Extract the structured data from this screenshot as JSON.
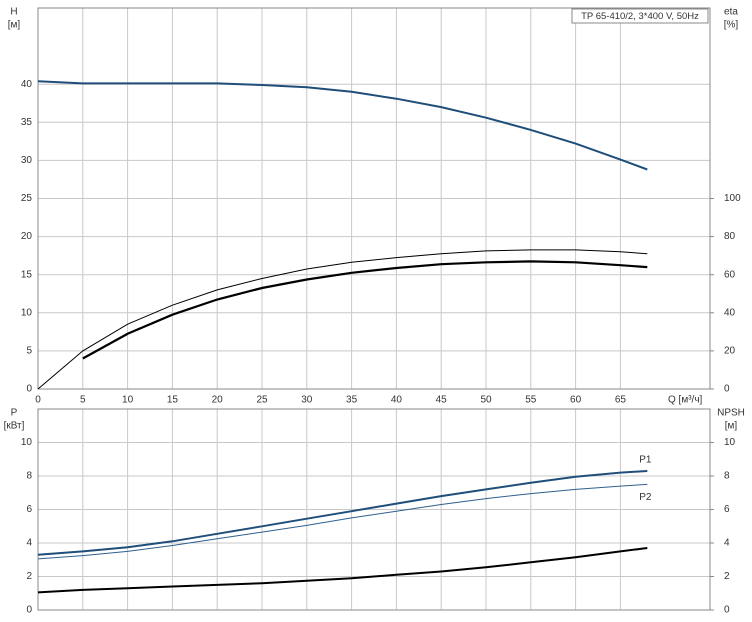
{
  "chart_data": [
    {
      "type": "line",
      "title": "TP 65-410/2, 3*400 V, 50Hz",
      "y_label": "H",
      "y_unit": "[м]",
      "y2_label": "eta",
      "y2_unit": "[%]",
      "x_label": "Q [м³/ч]",
      "x": [
        0,
        5,
        10,
        15,
        20,
        25,
        30,
        35,
        40,
        45,
        50,
        55,
        60,
        65,
        68
      ],
      "xlim": [
        0,
        75
      ],
      "xticks": [
        0,
        5,
        10,
        15,
        20,
        25,
        30,
        35,
        40,
        45,
        50,
        55,
        60,
        65
      ],
      "ylim": [
        0,
        50
      ],
      "yticks": [
        0,
        5,
        10,
        15,
        20,
        25,
        30,
        35,
        40
      ],
      "y2lim": [
        0,
        200
      ],
      "y2ticks": [
        0,
        20,
        40,
        60,
        80,
        100
      ],
      "grid": true,
      "series": [
        {
          "color": "#1f4e7a",
          "width": 2,
          "values": [
            40.4,
            40.1,
            40.1,
            40.1,
            40.1,
            39.9,
            39.6,
            39.0,
            38.1,
            37.0,
            35.6,
            34.0,
            32.2,
            30.1,
            28.8
          ]
        },
        {
          "color": "#000000",
          "width": 1,
          "axis": "y2",
          "values": [
            0,
            20,
            34,
            44,
            52,
            58,
            63,
            66.5,
            69,
            71,
            72.5,
            73,
            73,
            72,
            71
          ]
        },
        {
          "color": "#000000",
          "width": 2.2,
          "axis": "y2",
          "values": [
            null,
            16,
            29,
            39,
            47,
            53,
            57.5,
            61,
            63.5,
            65.5,
            66.5,
            67,
            66.5,
            65,
            64
          ]
        }
      ]
    },
    {
      "type": "line",
      "y_label": "P",
      "y_unit": "[кВт]",
      "y2_label": "NPSH",
      "y2_unit": "[м]",
      "x": [
        0,
        5,
        10,
        15,
        20,
        25,
        30,
        35,
        40,
        45,
        50,
        55,
        60,
        65,
        68
      ],
      "xlim": [
        0,
        75
      ],
      "ylim": [
        0,
        12
      ],
      "yticks": [
        0,
        2,
        4,
        6,
        8,
        10
      ],
      "y2lim": [
        0,
        12
      ],
      "y2ticks": [
        0,
        2,
        4,
        6,
        8,
        10
      ],
      "grid": true,
      "series": [
        {
          "name": "P1",
          "color": "#1f4e7a",
          "width": 2,
          "values": [
            3.3,
            3.5,
            3.75,
            4.1,
            4.55,
            5.0,
            5.45,
            5.9,
            6.35,
            6.8,
            7.2,
            7.6,
            7.95,
            8.2,
            8.3
          ]
        },
        {
          "name": "P2",
          "color": "#2f5f8f",
          "width": 1,
          "values": [
            3.05,
            3.25,
            3.5,
            3.85,
            4.25,
            4.65,
            5.05,
            5.5,
            5.9,
            6.3,
            6.65,
            6.95,
            7.2,
            7.4,
            7.5
          ]
        },
        {
          "color": "#000000",
          "width": 2,
          "axis": "y2",
          "values": [
            1.05,
            1.2,
            1.3,
            1.4,
            1.5,
            1.6,
            1.75,
            1.9,
            2.1,
            2.3,
            2.55,
            2.85,
            3.15,
            3.5,
            3.7
          ]
        }
      ]
    }
  ]
}
